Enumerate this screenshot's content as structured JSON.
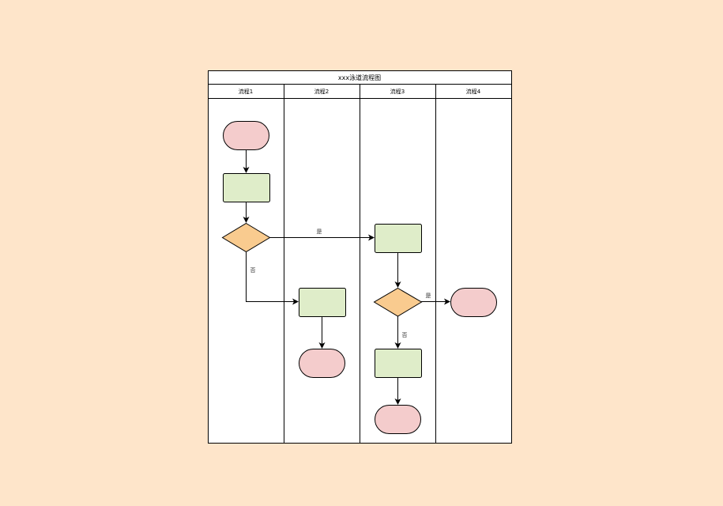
{
  "title": "xxx泳道流程图",
  "lanes": [
    "流程1",
    "流程2",
    "流程3",
    "流程4"
  ],
  "edge_labels": {
    "yes1": "是",
    "no1": "否",
    "yes2": "是",
    "no2": "否"
  },
  "colors": {
    "background": "#fee5ca",
    "terminal": "#f4cccc",
    "process": "#dfedc9",
    "decision": "#f9cb8f",
    "stroke": "#000000"
  }
}
